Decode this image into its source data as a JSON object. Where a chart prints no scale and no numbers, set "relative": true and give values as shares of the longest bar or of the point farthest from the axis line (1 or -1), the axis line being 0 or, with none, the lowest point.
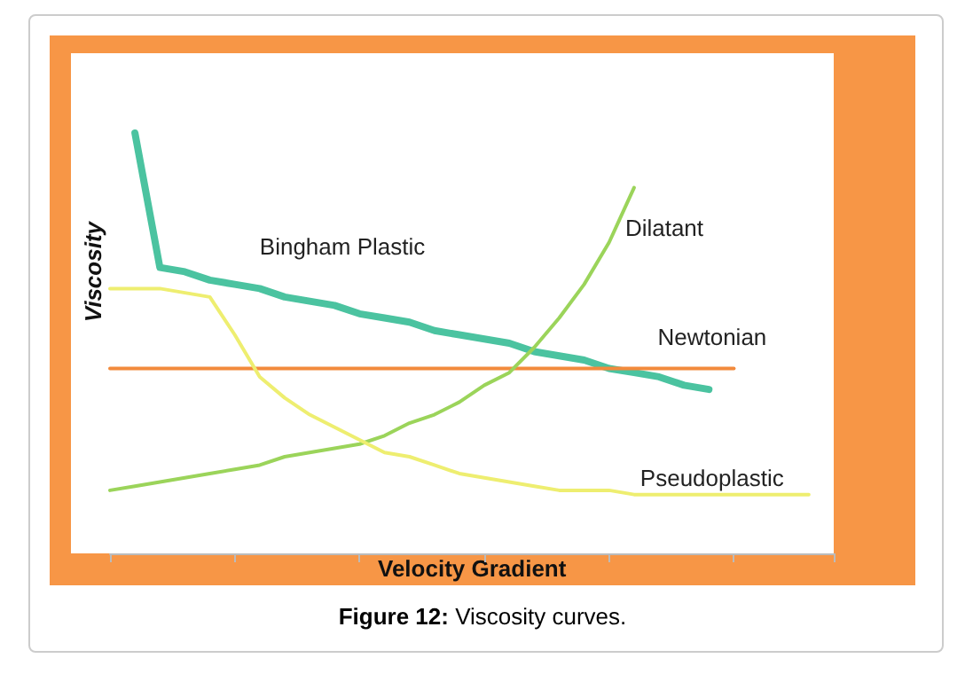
{
  "chart_data": {
    "type": "line",
    "relative": true,
    "xlabel": "Velocity Gradient",
    "ylabel": "Viscosity",
    "annotations": [
      "Figure 12: Viscosity curves."
    ],
    "categories": [
      null,
      null,
      null,
      null,
      null,
      null,
      null,
      null,
      null,
      null,
      null,
      null,
      null,
      null,
      null,
      null,
      null,
      null,
      null,
      null,
      null,
      null,
      null,
      null,
      null,
      null,
      null,
      null,
      null,
      null
    ],
    "grid": false,
    "legend": false,
    "marker": "none",
    "line_style": "solid",
    "series": [
      {
        "name": "Bingham Plastic",
        "color": "#4bc3a0",
        "values": [
          null,
          1.0,
          0.68,
          0.67,
          0.65,
          0.64,
          0.63,
          0.61,
          0.6,
          0.59,
          0.57,
          0.56,
          0.55,
          0.53,
          0.52,
          0.51,
          0.5,
          0.48,
          0.47,
          0.46,
          0.44,
          0.43,
          0.42,
          0.4,
          0.39,
          null,
          null,
          null,
          null,
          null
        ]
      },
      {
        "name": "Newtonian",
        "color": "#f28a3c",
        "values": [
          0.44,
          0.44,
          0.44,
          0.44,
          0.44,
          0.44,
          0.44,
          0.44,
          0.44,
          0.44,
          0.44,
          0.44,
          0.44,
          0.44,
          0.44,
          0.44,
          0.44,
          0.44,
          0.44,
          0.44,
          0.44,
          0.44,
          0.44,
          0.44,
          0.44,
          0.44,
          null,
          null,
          null,
          null
        ]
      },
      {
        "name": "Dilatant",
        "color": "#9bd45a",
        "values": [
          0.15,
          0.16,
          0.17,
          0.18,
          0.19,
          0.2,
          0.21,
          0.23,
          0.24,
          0.25,
          0.26,
          0.28,
          0.31,
          0.33,
          0.36,
          0.4,
          0.43,
          0.49,
          0.56,
          0.64,
          0.74,
          0.87,
          null,
          null,
          null,
          null,
          null,
          null,
          null,
          null
        ]
      },
      {
        "name": "Pseudoplastic",
        "color": "#eeee70",
        "values": [
          0.63,
          0.63,
          0.63,
          0.62,
          0.61,
          0.52,
          0.42,
          0.37,
          0.33,
          0.3,
          0.27,
          0.24,
          0.23,
          0.21,
          0.19,
          0.18,
          0.17,
          0.16,
          0.15,
          0.15,
          0.15,
          0.14,
          0.14,
          0.14,
          0.14,
          0.14,
          0.14,
          0.14,
          0.14,
          null
        ]
      }
    ]
  }
}
